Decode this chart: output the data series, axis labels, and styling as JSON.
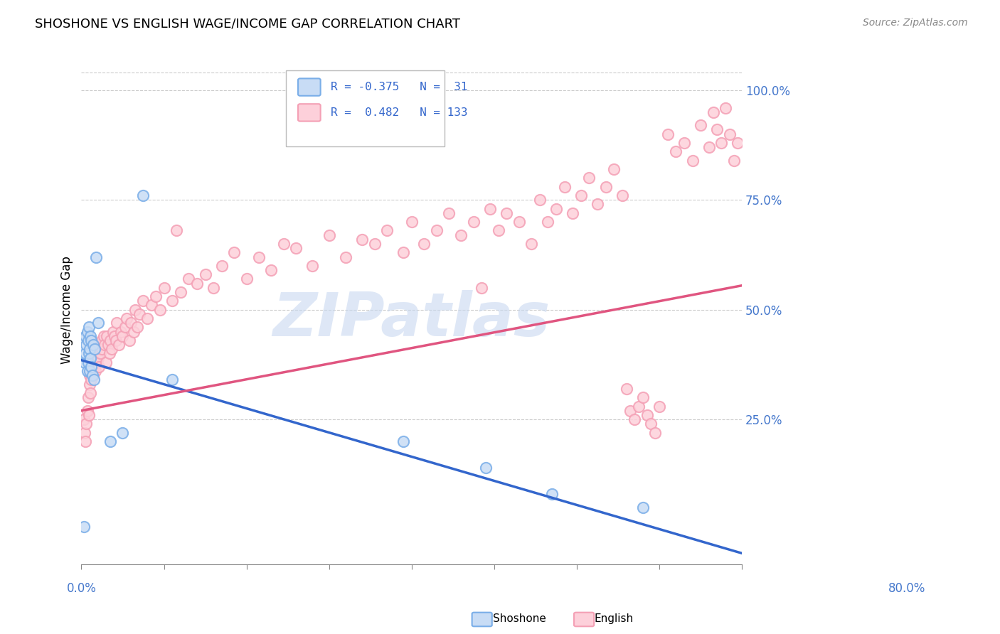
{
  "title": "SHOSHONE VS ENGLISH WAGE/INCOME GAP CORRELATION CHART",
  "source": "Source: ZipAtlas.com",
  "ylabel": "Wage/Income Gap",
  "right_yticks": [
    "100.0%",
    "75.0%",
    "50.0%",
    "25.0%"
  ],
  "right_ytick_vals": [
    1.0,
    0.75,
    0.5,
    0.25
  ],
  "xmin": 0.0,
  "xmax": 0.8,
  "ymin": -0.08,
  "ymax": 1.08,
  "shoshone_color": "#7aaee8",
  "english_color": "#f4a0b5",
  "shoshone_face_color": "#c8dcf5",
  "english_face_color": "#fdd0da",
  "shoshone_line_color": "#3366cc",
  "english_line_color": "#e05580",
  "grid_color": "#cccccc",
  "legend_text_color": "#3366cc",
  "axis_label_color": "#4477cc",
  "watermark": "ZIPatlas",
  "sho_line_x0": 0.0,
  "sho_line_y0": 0.385,
  "sho_line_x1": 0.8,
  "sho_line_y1": -0.055,
  "eng_line_x0": 0.0,
  "eng_line_y0": 0.27,
  "eng_line_x1": 0.8,
  "eng_line_y1": 0.555,
  "shoshone_x": [
    0.003,
    0.004,
    0.005,
    0.005,
    0.006,
    0.007,
    0.007,
    0.008,
    0.008,
    0.009,
    0.009,
    0.01,
    0.01,
    0.011,
    0.011,
    0.012,
    0.012,
    0.013,
    0.014,
    0.015,
    0.016,
    0.018,
    0.02,
    0.035,
    0.05,
    0.075,
    0.11,
    0.39,
    0.49,
    0.57,
    0.68
  ],
  "shoshone_y": [
    0.005,
    0.38,
    0.4,
    0.44,
    0.42,
    0.36,
    0.45,
    0.38,
    0.43,
    0.4,
    0.46,
    0.36,
    0.41,
    0.39,
    0.44,
    0.37,
    0.43,
    0.35,
    0.42,
    0.34,
    0.41,
    0.62,
    0.47,
    0.2,
    0.22,
    0.76,
    0.34,
    0.2,
    0.14,
    0.08,
    0.05
  ],
  "english_x": [
    0.003,
    0.004,
    0.005,
    0.006,
    0.007,
    0.008,
    0.009,
    0.01,
    0.01,
    0.011,
    0.011,
    0.012,
    0.013,
    0.013,
    0.014,
    0.015,
    0.015,
    0.016,
    0.017,
    0.018,
    0.018,
    0.019,
    0.02,
    0.021,
    0.022,
    0.023,
    0.025,
    0.025,
    0.027,
    0.028,
    0.03,
    0.031,
    0.032,
    0.034,
    0.035,
    0.037,
    0.038,
    0.04,
    0.042,
    0.043,
    0.045,
    0.048,
    0.05,
    0.053,
    0.055,
    0.058,
    0.06,
    0.063,
    0.065,
    0.068,
    0.07,
    0.075,
    0.08,
    0.085,
    0.09,
    0.095,
    0.1,
    0.11,
    0.115,
    0.12,
    0.13,
    0.14,
    0.15,
    0.16,
    0.17,
    0.185,
    0.2,
    0.215,
    0.23,
    0.245,
    0.26,
    0.28,
    0.3,
    0.32,
    0.34,
    0.355,
    0.37,
    0.39,
    0.4,
    0.415,
    0.43,
    0.445,
    0.46,
    0.475,
    0.485,
    0.495,
    0.505,
    0.515,
    0.53,
    0.545,
    0.555,
    0.565,
    0.575,
    0.585,
    0.595,
    0.605,
    0.615,
    0.625,
    0.635,
    0.645,
    0.655,
    0.66,
    0.665,
    0.67,
    0.675,
    0.68,
    0.685,
    0.69,
    0.695,
    0.7,
    0.71,
    0.72,
    0.73,
    0.74,
    0.75,
    0.76,
    0.765,
    0.77,
    0.775,
    0.78,
    0.785,
    0.79,
    0.795
  ],
  "english_y": [
    0.25,
    0.22,
    0.2,
    0.24,
    0.27,
    0.3,
    0.26,
    0.33,
    0.35,
    0.37,
    0.31,
    0.34,
    0.38,
    0.36,
    0.35,
    0.39,
    0.37,
    0.38,
    0.36,
    0.4,
    0.38,
    0.41,
    0.39,
    0.37,
    0.42,
    0.4,
    0.43,
    0.41,
    0.44,
    0.42,
    0.38,
    0.44,
    0.42,
    0.4,
    0.43,
    0.41,
    0.45,
    0.44,
    0.43,
    0.47,
    0.42,
    0.45,
    0.44,
    0.46,
    0.48,
    0.43,
    0.47,
    0.45,
    0.5,
    0.46,
    0.49,
    0.52,
    0.48,
    0.51,
    0.53,
    0.5,
    0.55,
    0.52,
    0.68,
    0.54,
    0.57,
    0.56,
    0.58,
    0.55,
    0.6,
    0.63,
    0.57,
    0.62,
    0.59,
    0.65,
    0.64,
    0.6,
    0.67,
    0.62,
    0.66,
    0.65,
    0.68,
    0.63,
    0.7,
    0.65,
    0.68,
    0.72,
    0.67,
    0.7,
    0.55,
    0.73,
    0.68,
    0.72,
    0.7,
    0.65,
    0.75,
    0.7,
    0.73,
    0.78,
    0.72,
    0.76,
    0.8,
    0.74,
    0.78,
    0.82,
    0.76,
    0.32,
    0.27,
    0.25,
    0.28,
    0.3,
    0.26,
    0.24,
    0.22,
    0.28,
    0.9,
    0.86,
    0.88,
    0.84,
    0.92,
    0.87,
    0.95,
    0.91,
    0.88,
    0.96,
    0.9,
    0.84,
    0.88
  ]
}
